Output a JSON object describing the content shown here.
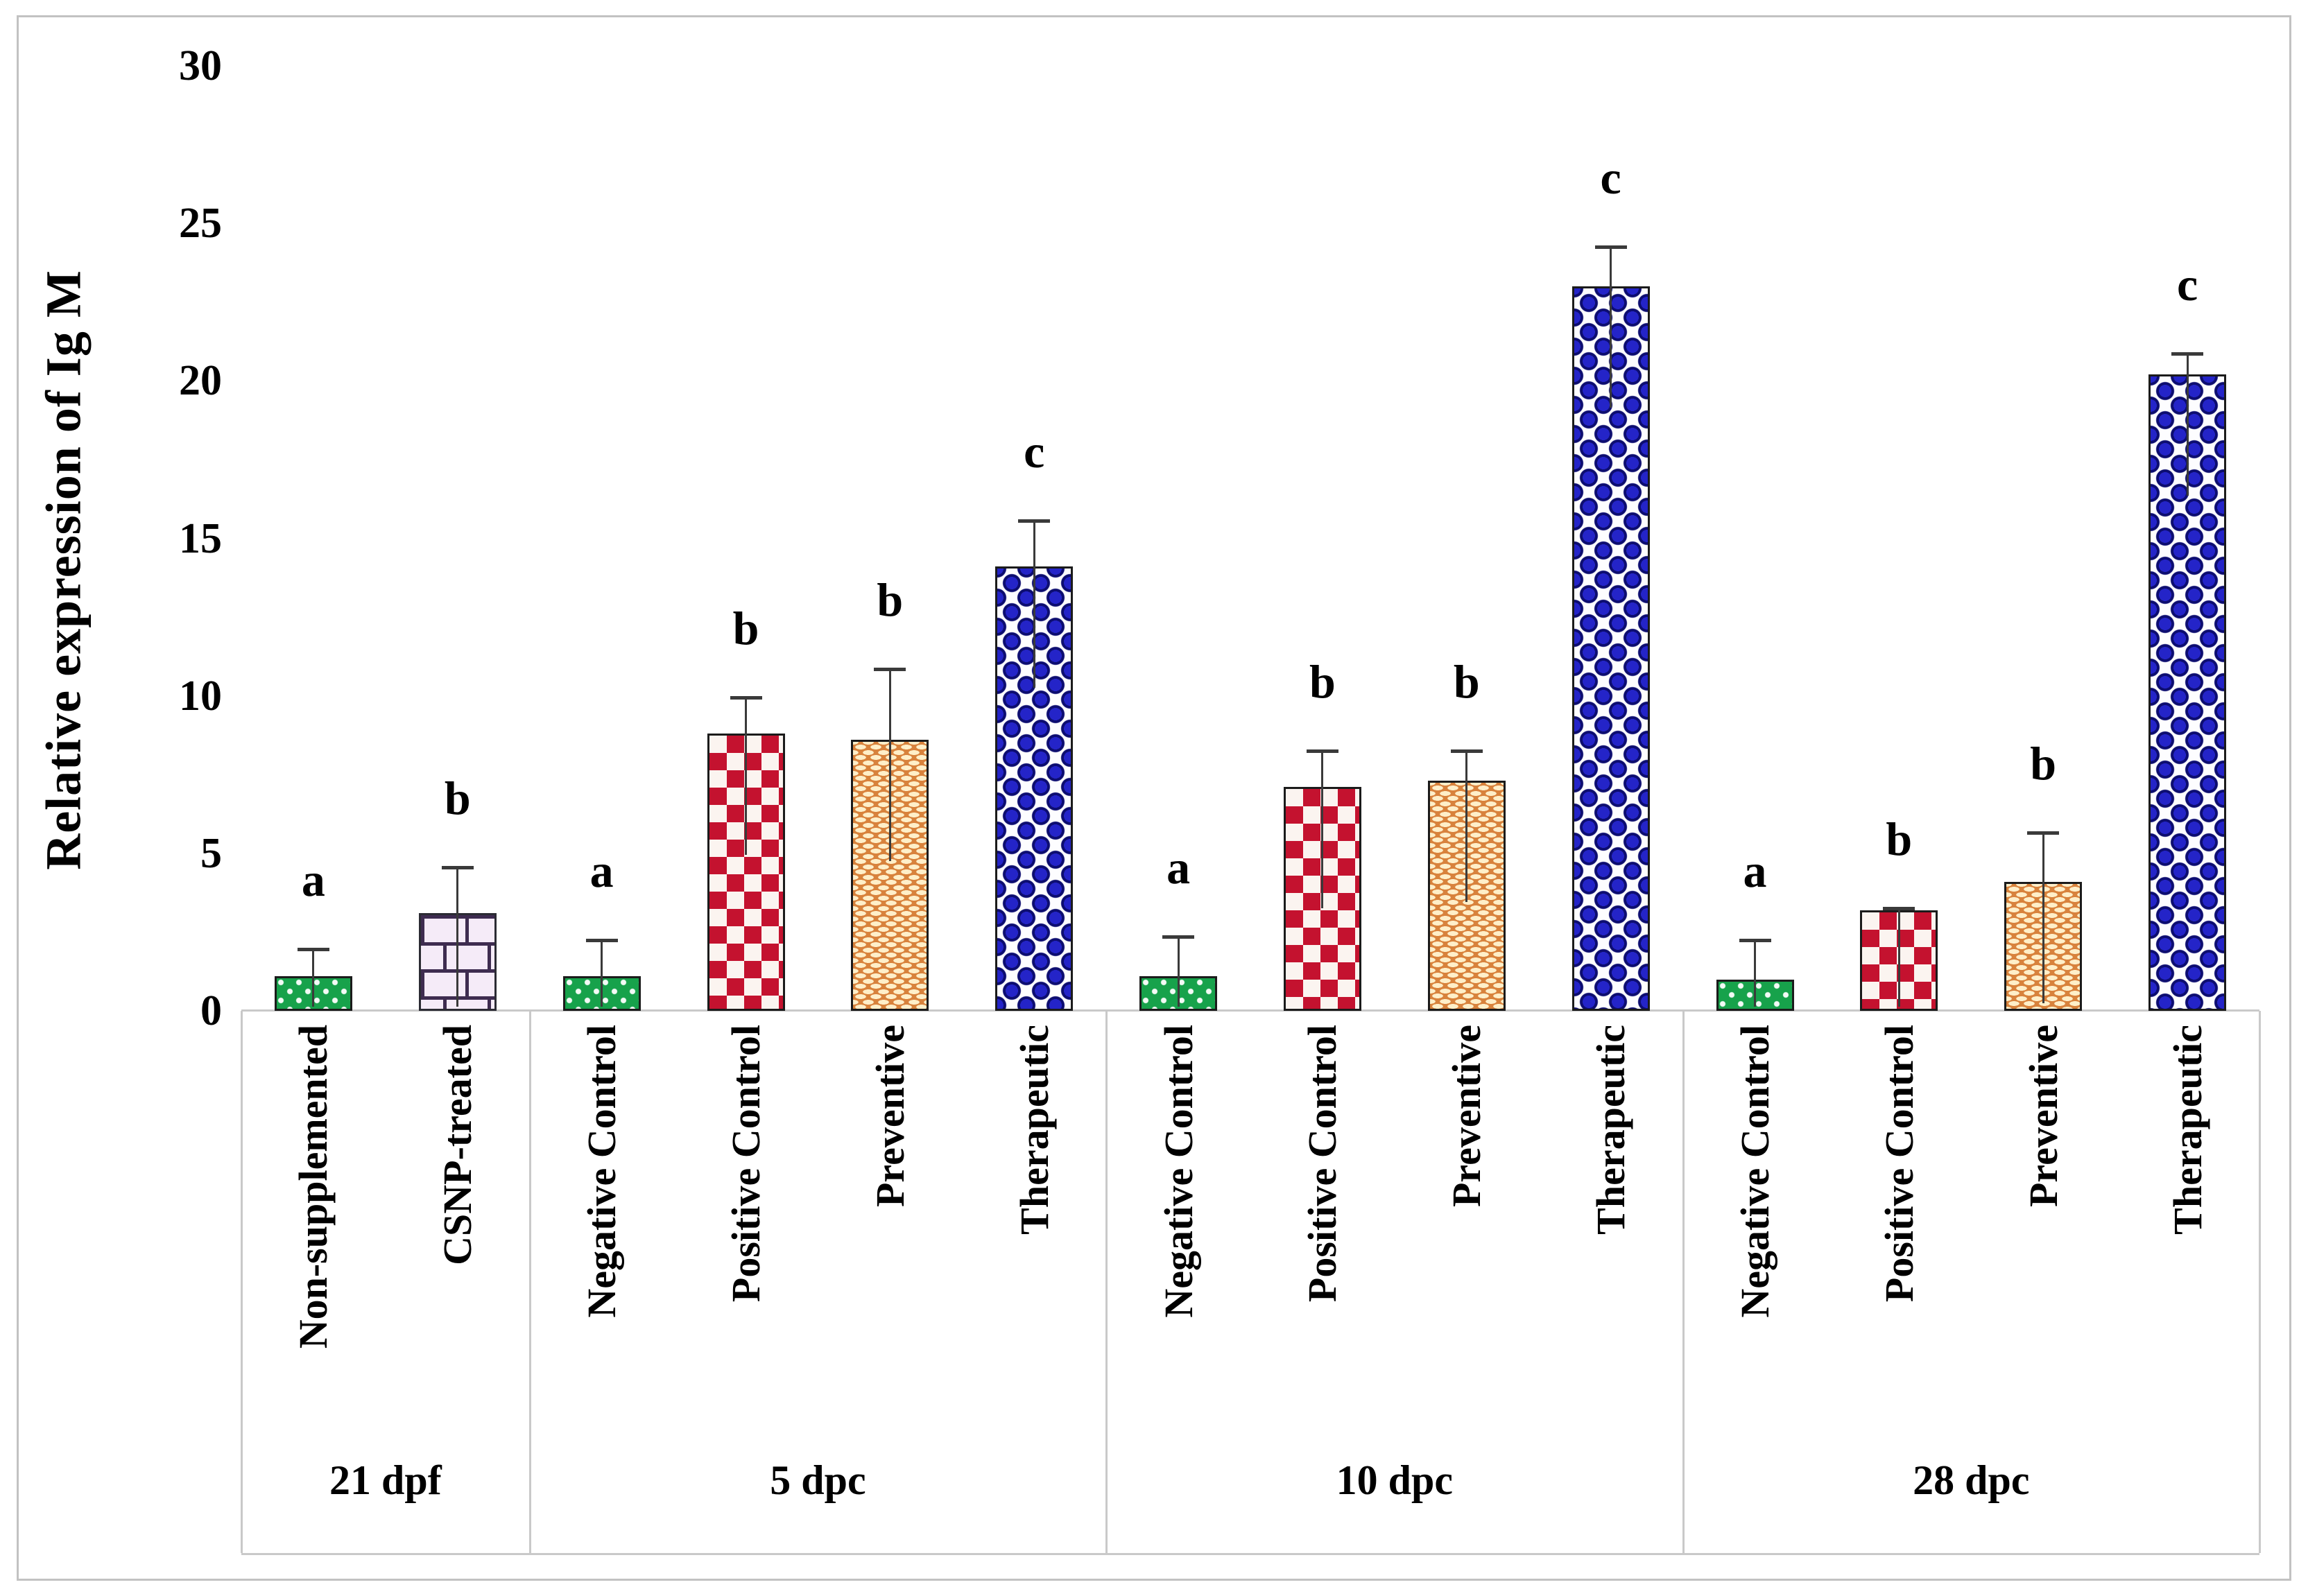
{
  "figure": {
    "background": "#ffffff",
    "frame_color": "#c2c2c2",
    "axis_line_color": "#c9c9c9",
    "error_bar_color": "#3a3a3a"
  },
  "colors": {
    "green_fill": "#17a24b",
    "green_dot": "#ffffff",
    "brick_fill": "#f5ebf8",
    "brick_mortar": "#3e2c50",
    "red_fill": "#c4122f",
    "red_bg": "#fbf4f0",
    "orange_fill": "#d8823c",
    "orange_dash": "#ffefc9",
    "blue_fill": "#2424c8",
    "blue_bg": "#fdfdff",
    "bar_border": "#1b1b1b"
  },
  "chart_data": {
    "type": "bar",
    "title": "",
    "ylabel": "Relative expression of Ig M",
    "xlabel": "",
    "ylim": [
      0,
      30
    ],
    "yticks": [
      0,
      5,
      10,
      15,
      20,
      25,
      30
    ],
    "grid": false,
    "legend": "none",
    "error_bars": "upper only",
    "groups": [
      {
        "label": "21 dpf",
        "bars": [
          {
            "label": "Non-supplemented",
            "value": 1.1,
            "error_up": 0.9,
            "sig": "a",
            "style": "green-dots"
          },
          {
            "label": "CSNP-treated",
            "value": 3.1,
            "error_up": 1.5,
            "sig": "b",
            "style": "brick"
          }
        ]
      },
      {
        "label": "5 dpc",
        "bars": [
          {
            "label": "Negative Control",
            "value": 1.1,
            "error_up": 1.2,
            "sig": "a",
            "style": "green-dots"
          },
          {
            "label": "Positive Control",
            "value": 8.8,
            "error_up": 1.2,
            "sig": "b",
            "style": "red-check"
          },
          {
            "label": "Preventive",
            "value": 8.6,
            "error_up": 2.3,
            "sig": "b",
            "style": "orange-weave"
          },
          {
            "label": "Therapeutic",
            "value": 14.1,
            "error_up": 1.5,
            "sig": "c",
            "style": "blue-circles"
          }
        ]
      },
      {
        "label": "10 dpc",
        "bars": [
          {
            "label": "Negative Control",
            "value": 1.1,
            "error_up": 1.3,
            "sig": "a",
            "style": "green-dots"
          },
          {
            "label": "Positive Control",
            "value": 7.1,
            "error_up": 1.2,
            "sig": "b",
            "style": "red-check"
          },
          {
            "label": "Preventive",
            "value": 7.3,
            "error_up": 1.0,
            "sig": "b",
            "style": "orange-weave"
          },
          {
            "label": "Therapeutic",
            "value": 23.0,
            "error_up": 1.3,
            "sig": "c",
            "style": "blue-circles"
          }
        ]
      },
      {
        "label": "28 dpc",
        "bars": [
          {
            "label": "Negative Control",
            "value": 1.0,
            "error_up": 1.3,
            "sig": "a",
            "style": "green-dots"
          },
          {
            "label": "Positive Control",
            "value": 3.2,
            "error_up": 0.1,
            "sig": "b",
            "style": "red-check"
          },
          {
            "label": "Preventive",
            "value": 4.1,
            "error_up": 1.6,
            "sig": "b",
            "style": "orange-weave"
          },
          {
            "label": "Therapeutic",
            "value": 20.2,
            "error_up": 0.7,
            "sig": "c",
            "style": "blue-circles"
          }
        ]
      }
    ]
  }
}
